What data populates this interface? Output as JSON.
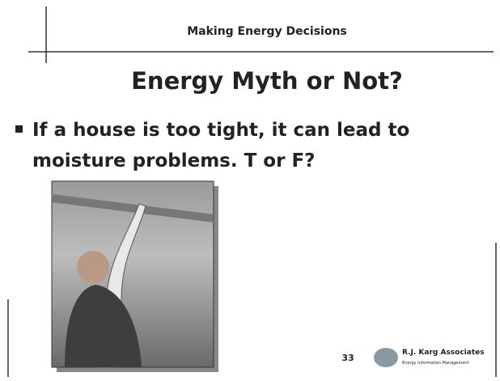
{
  "header": {
    "title": "Making Energy Decisions"
  },
  "slide": {
    "title": "Energy Myth or Not?",
    "bullets": [
      "If a house is too tight, it can lead to",
      "moisture problems. T or F?"
    ],
    "page_number": "33"
  },
  "footer": {
    "logo_name": "R.J. Karg Associates",
    "logo_tagline": "Energy Information Management"
  }
}
